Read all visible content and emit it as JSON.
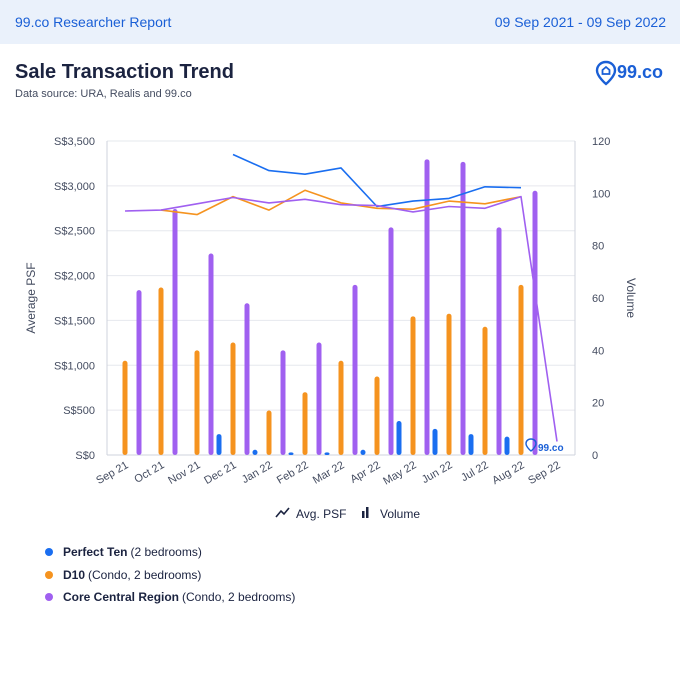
{
  "header": {
    "brand": "99.co Researcher Report",
    "date_range": "09 Sep 2021 - 09 Sep 2022"
  },
  "page": {
    "title": "Sale Transaction Trend",
    "subtitle": "Data source: URA, Realis and 99.co",
    "logo_text": "99.co"
  },
  "legend": [
    {
      "name": "Perfect Ten",
      "detail": "(2 bedrooms)",
      "color": "#1a6ef0"
    },
    {
      "name": "D10",
      "detail": "(Condo, 2 bedrooms)",
      "color": "#f5931f"
    },
    {
      "name": "Core Central Region",
      "detail": "(Condo, 2 bedrooms)",
      "color": "#a060f0"
    }
  ],
  "colors": {
    "perfect_ten": "#1a6ef0",
    "d10": "#f5931f",
    "ccr": "#a060f0",
    "axis_text": "#444c60",
    "grid": "#e6e8ee"
  },
  "chart_data": {
    "type": "bar+line",
    "categories": [
      "Sep 21",
      "Oct 21",
      "Nov 21",
      "Dec 21",
      "Jan 22",
      "Feb 22",
      "Mar 22",
      "Apr 22",
      "May 22",
      "Jun 22",
      "Jul 22",
      "Aug 22",
      "Sep 22"
    ],
    "left_axis": {
      "label": "Average PSF",
      "min": 0,
      "max": 3500,
      "step": 500,
      "tick_labels": [
        "S$0",
        "S$500",
        "S$1,000",
        "S$1,500",
        "S$2,000",
        "S$2,500",
        "S$3,000",
        "S$3,500"
      ]
    },
    "right_axis": {
      "label": "Volume",
      "min": 0,
      "max": 120,
      "step": 20,
      "tick_labels": [
        "0",
        "20",
        "40",
        "60",
        "80",
        "100",
        "120"
      ]
    },
    "volume_series": [
      {
        "name": "Perfect Ten",
        "values": [
          0,
          0,
          0,
          8,
          2,
          1,
          1,
          2,
          13,
          10,
          8,
          7,
          0
        ]
      },
      {
        "name": "D10",
        "values": [
          36,
          64,
          40,
          43,
          17,
          24,
          36,
          30,
          53,
          54,
          49,
          65,
          0
        ]
      },
      {
        "name": "Core Central Region",
        "values": [
          63,
          94,
          77,
          58,
          40,
          43,
          65,
          87,
          113,
          112,
          87,
          101,
          0
        ]
      }
    ],
    "psf_series": [
      {
        "name": "Perfect Ten",
        "values": [
          null,
          null,
          null,
          3350,
          3170,
          3130,
          3200,
          2770,
          2830,
          2860,
          2990,
          2980,
          null
        ]
      },
      {
        "name": "D10",
        "values": [
          null,
          2730,
          2680,
          2880,
          2730,
          2950,
          2810,
          2750,
          2740,
          2830,
          2800,
          2880,
          null
        ]
      },
      {
        "name": "Core Central Region",
        "values": [
          2720,
          2730,
          2800,
          2870,
          2810,
          2850,
          2790,
          2780,
          2710,
          2770,
          2750,
          2880,
          150
        ]
      }
    ],
    "bottom_legend": [
      "Avg. PSF",
      "Volume"
    ],
    "watermark": "99.co"
  }
}
